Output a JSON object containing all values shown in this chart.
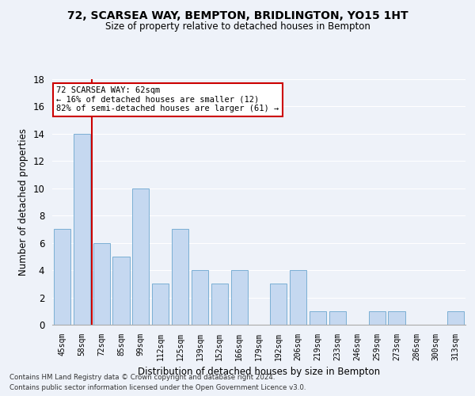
{
  "title1": "72, SCARSEA WAY, BEMPTON, BRIDLINGTON, YO15 1HT",
  "title2": "Size of property relative to detached houses in Bempton",
  "xlabel": "Distribution of detached houses by size in Bempton",
  "ylabel": "Number of detached properties",
  "footnote1": "Contains HM Land Registry data © Crown copyright and database right 2024.",
  "footnote2": "Contains public sector information licensed under the Open Government Licence v3.0.",
  "annotation_line1": "72 SCARSEA WAY: 62sqm",
  "annotation_line2": "← 16% of detached houses are smaller (12)",
  "annotation_line3": "82% of semi-detached houses are larger (61) →",
  "bar_labels": [
    "45sqm",
    "58sqm",
    "72sqm",
    "85sqm",
    "99sqm",
    "112sqm",
    "125sqm",
    "139sqm",
    "152sqm",
    "166sqm",
    "179sqm",
    "192sqm",
    "206sqm",
    "219sqm",
    "233sqm",
    "246sqm",
    "259sqm",
    "273sqm",
    "286sqm",
    "300sqm",
    "313sqm"
  ],
  "bar_values": [
    7,
    14,
    6,
    5,
    10,
    3,
    7,
    4,
    3,
    4,
    0,
    3,
    4,
    1,
    1,
    0,
    1,
    1,
    0,
    0,
    1
  ],
  "bar_color": "#c5d8f0",
  "bar_edgecolor": "#7bafd4",
  "bg_color": "#eef2f9",
  "grid_color": "#ffffff",
  "vline_color": "#cc0000",
  "annotation_box_facecolor": "#ffffff",
  "annotation_box_edgecolor": "#cc0000",
  "ylim": [
    0,
    18
  ],
  "yticks": [
    0,
    2,
    4,
    6,
    8,
    10,
    12,
    14,
    16,
    18
  ]
}
